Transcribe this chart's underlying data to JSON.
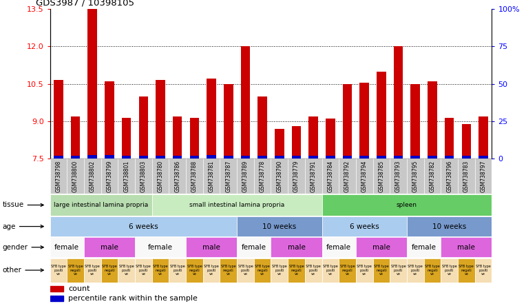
{
  "title": "GDS3987 / 10398105",
  "samples": [
    "GSM738798",
    "GSM738800",
    "GSM738802",
    "GSM738799",
    "GSM738801",
    "GSM738803",
    "GSM738780",
    "GSM738786",
    "GSM738788",
    "GSM738781",
    "GSM738787",
    "GSM738789",
    "GSM738778",
    "GSM738790",
    "GSM738779",
    "GSM738791",
    "GSM738784",
    "GSM738792",
    "GSM738794",
    "GSM738785",
    "GSM738793",
    "GSM738795",
    "GSM738782",
    "GSM738796",
    "GSM738783",
    "GSM738797"
  ],
  "red_values": [
    10.65,
    9.2,
    13.5,
    10.6,
    9.15,
    10.0,
    10.65,
    9.2,
    9.15,
    10.7,
    10.5,
    12.0,
    10.0,
    8.7,
    8.8,
    9.2,
    9.1,
    10.5,
    10.55,
    11.0,
    12.0,
    10.5,
    10.6,
    9.15,
    8.9,
    9.2
  ],
  "blue_heights": [
    0.13,
    0.13,
    0.15,
    0.14,
    0.13,
    0.13,
    0.13,
    0.13,
    0.13,
    0.14,
    0.13,
    0.13,
    0.13,
    0.12,
    0.12,
    0.13,
    0.12,
    0.13,
    0.13,
    0.13,
    0.13,
    0.13,
    0.13,
    0.13,
    0.12,
    0.13
  ],
  "ymin": 7.5,
  "ymax": 13.5,
  "yticks_left": [
    7.5,
    9.0,
    10.5,
    12.0,
    13.5
  ],
  "yticks_right_pct": [
    0,
    25,
    50,
    75,
    100
  ],
  "bar_color": "#cc0000",
  "blue_color": "#0000cc",
  "legend_red": "count",
  "legend_blue": "percentile rank within the sample",
  "tissue_groups": [
    {
      "label": "large intestinal lamina propria",
      "start": 0,
      "end": 6,
      "color": "#b8ddb0"
    },
    {
      "label": "small intestinal lamina propria",
      "start": 6,
      "end": 16,
      "color": "#c8ecc0"
    },
    {
      "label": "spleen",
      "start": 16,
      "end": 26,
      "color": "#66cc66"
    }
  ],
  "age_groups": [
    {
      "label": "6 weeks",
      "start": 0,
      "end": 11,
      "color": "#aaccee"
    },
    {
      "label": "10 weeks",
      "start": 11,
      "end": 16,
      "color": "#7799cc"
    },
    {
      "label": "6 weeks",
      "start": 16,
      "end": 21,
      "color": "#aaccee"
    },
    {
      "label": "10 weeks",
      "start": 21,
      "end": 26,
      "color": "#7799cc"
    }
  ],
  "gender_groups": [
    {
      "label": "female",
      "start": 0,
      "end": 2,
      "color": "#f8f8f8"
    },
    {
      "label": "male",
      "start": 2,
      "end": 5,
      "color": "#dd66dd"
    },
    {
      "label": "female",
      "start": 5,
      "end": 8,
      "color": "#f8f8f8"
    },
    {
      "label": "male",
      "start": 8,
      "end": 11,
      "color": "#dd66dd"
    },
    {
      "label": "female",
      "start": 11,
      "end": 13,
      "color": "#f8f8f8"
    },
    {
      "label": "male",
      "start": 13,
      "end": 16,
      "color": "#dd66dd"
    },
    {
      "label": "female",
      "start": 16,
      "end": 18,
      "color": "#f8f8f8"
    },
    {
      "label": "male",
      "start": 18,
      "end": 21,
      "color": "#dd66dd"
    },
    {
      "label": "female",
      "start": 21,
      "end": 23,
      "color": "#f8f8f8"
    },
    {
      "label": "male",
      "start": 23,
      "end": 26,
      "color": "#dd66dd"
    }
  ],
  "other_pattern": [
    "positive",
    "negative",
    "positive",
    "negative",
    "positive",
    "positive",
    "negative",
    "positive",
    "negative",
    "positive",
    "negative",
    "positive",
    "negative",
    "positive",
    "negative",
    "positive",
    "positive",
    "negative",
    "positive",
    "negative",
    "positive",
    "positive",
    "negative",
    "positive",
    "negative",
    "positive"
  ],
  "other_positive_color": "#f5deb3",
  "other_negative_color": "#daa520",
  "grid_lines": [
    9.0,
    10.5,
    12.0
  ]
}
